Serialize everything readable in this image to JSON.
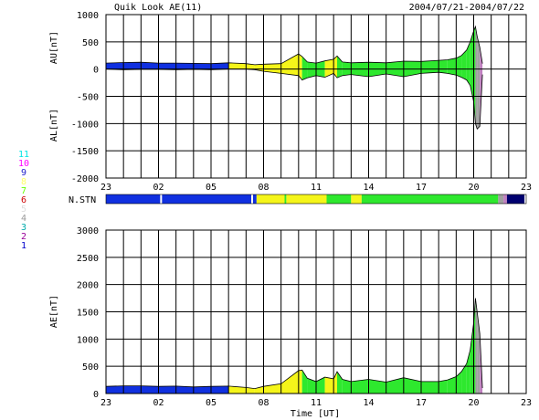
{
  "header": {
    "title": "Quik Look AE(11)",
    "date_range": "2004/07/21-2004/07/22"
  },
  "legend": {
    "station_counts": [
      {
        "label": "11",
        "color": "#00e5e5"
      },
      {
        "label": "10",
        "color": "#ff00ff"
      },
      {
        "label": "9",
        "color": "#2222cc"
      },
      {
        "label": "8",
        "color": "#ffff66"
      },
      {
        "label": "7",
        "color": "#66ff00"
      },
      {
        "label": "6",
        "color": "#cc0000"
      },
      {
        "label": "5",
        "color": "#dddddd"
      },
      {
        "label": "4",
        "color": "#999999"
      },
      {
        "label": "3",
        "color": "#00aaaa"
      },
      {
        "label": "2",
        "color": "#990099"
      },
      {
        "label": "1",
        "color": "#0000cc"
      }
    ]
  },
  "colors": {
    "blue": "#1030e0",
    "yellow": "#f5f51a",
    "green": "#2ee82e",
    "purple": "#c080c0",
    "gray": "#a0a0a0",
    "navy": "#000070",
    "magenta": "#800080",
    "black": "#000000"
  },
  "chart_data": [
    {
      "type": "area",
      "panel": "AU/AL",
      "ylabel_top": "AU[nT]",
      "ylabel_bottom": "AL[nT]",
      "ylim": [
        -2000,
        1000
      ],
      "yticks": [
        "1000",
        "500",
        "0",
        "-500",
        "-1000",
        "-1500",
        "-2000"
      ],
      "ytick_values": [
        1000,
        500,
        0,
        -500,
        -1000,
        -1500,
        -2000
      ],
      "xticks": [
        "23",
        "02",
        "05",
        "08",
        "11",
        "14",
        "17",
        "20",
        "23"
      ],
      "xlim_hours": [
        0,
        24
      ],
      "grid": true,
      "series": [
        {
          "name": "AU",
          "x": [
            0,
            1,
            2,
            3,
            4,
            5,
            6,
            7,
            8,
            8.5,
            9,
            10,
            11,
            11.2,
            11.5,
            12,
            12.5,
            13,
            13.2,
            13.5,
            14,
            15,
            16,
            17,
            18,
            19,
            19.5,
            20,
            20.3,
            20.6,
            20.8,
            21,
            21.1,
            21.2,
            21.35,
            21.5
          ],
          "values": [
            110,
            120,
            125,
            110,
            110,
            105,
            100,
            115,
            100,
            80,
            90,
            100,
            280,
            230,
            130,
            110,
            150,
            180,
            240,
            130,
            115,
            125,
            115,
            145,
            140,
            160,
            170,
            200,
            250,
            350,
            500,
            700,
            780,
            600,
            400,
            100
          ]
        },
        {
          "name": "AL",
          "x": [
            0,
            1,
            2,
            3,
            4,
            5,
            6,
            7,
            8,
            8.5,
            9,
            10,
            11,
            11.2,
            11.5,
            12,
            12.5,
            13,
            13.2,
            13.5,
            14,
            15,
            16,
            17,
            18,
            19,
            19.5,
            20,
            20.3,
            20.6,
            20.8,
            21,
            21.1,
            21.2,
            21.35,
            21.5
          ],
          "values": [
            0,
            -10,
            -5,
            -5,
            -10,
            -5,
            -10,
            0,
            0,
            -10,
            -40,
            -80,
            -120,
            -200,
            -160,
            -120,
            -150,
            -80,
            -160,
            -120,
            -100,
            -140,
            -90,
            -140,
            -80,
            -60,
            -80,
            -110,
            -150,
            -200,
            -300,
            -600,
            -1000,
            -1100,
            -1050,
            -100
          ]
        }
      ]
    },
    {
      "type": "area",
      "panel": "AE",
      "ylabel": "AE[nT]",
      "xlabel": "Time [UT]",
      "ylim": [
        0,
        3000
      ],
      "yticks": [
        "3000",
        "2500",
        "2000",
        "1500",
        "1000",
        "500",
        "0"
      ],
      "ytick_values": [
        3000,
        2500,
        2000,
        1500,
        1000,
        500,
        0
      ],
      "xticks": [
        "23",
        "02",
        "05",
        "08",
        "11",
        "14",
        "17",
        "20",
        "23"
      ],
      "xlim_hours": [
        0,
        24
      ],
      "grid": true,
      "series": [
        {
          "name": "AE",
          "x": [
            0,
            1,
            2,
            3,
            4,
            5,
            6,
            7,
            8,
            8.5,
            9,
            10,
            11,
            11.2,
            11.5,
            12,
            12.5,
            13,
            13.2,
            13.5,
            14,
            15,
            16,
            17,
            18,
            19,
            19.5,
            20,
            20.3,
            20.6,
            20.8,
            21,
            21.1,
            21.2,
            21.35,
            21.5
          ],
          "values": [
            130,
            140,
            140,
            130,
            135,
            120,
            130,
            135,
            110,
            90,
            130,
            180,
            420,
            430,
            280,
            220,
            300,
            270,
            400,
            260,
            220,
            260,
            210,
            290,
            220,
            220,
            250,
            310,
            400,
            550,
            800,
            1300,
            1750,
            1500,
            1100,
            100
          ]
        }
      ]
    }
  ],
  "station_bar": {
    "label": "N.STN",
    "segments": [
      {
        "start": 0,
        "end": 3.1,
        "color": "#1030e0"
      },
      {
        "start": 3.1,
        "end": 3.2,
        "color": "#ffffff"
      },
      {
        "start": 3.2,
        "end": 8.3,
        "color": "#1030e0"
      },
      {
        "start": 8.3,
        "end": 8.4,
        "color": "#ffffff"
      },
      {
        "start": 8.4,
        "end": 8.6,
        "color": "#1030e0"
      },
      {
        "start": 8.6,
        "end": 10.2,
        "color": "#f5f51a"
      },
      {
        "start": 10.2,
        "end": 10.3,
        "color": "#2ee82e"
      },
      {
        "start": 10.3,
        "end": 12.6,
        "color": "#f5f51a"
      },
      {
        "start": 12.6,
        "end": 14.0,
        "color": "#2ee82e"
      },
      {
        "start": 14.0,
        "end": 14.6,
        "color": "#f5f51a"
      },
      {
        "start": 14.6,
        "end": 22.4,
        "color": "#2ee82e"
      },
      {
        "start": 22.4,
        "end": 22.7,
        "color": "#a0a0a0"
      },
      {
        "start": 22.7,
        "end": 22.9,
        "color": "#c080c0"
      },
      {
        "start": 22.9,
        "end": 23.9,
        "color": "#000070"
      }
    ]
  }
}
